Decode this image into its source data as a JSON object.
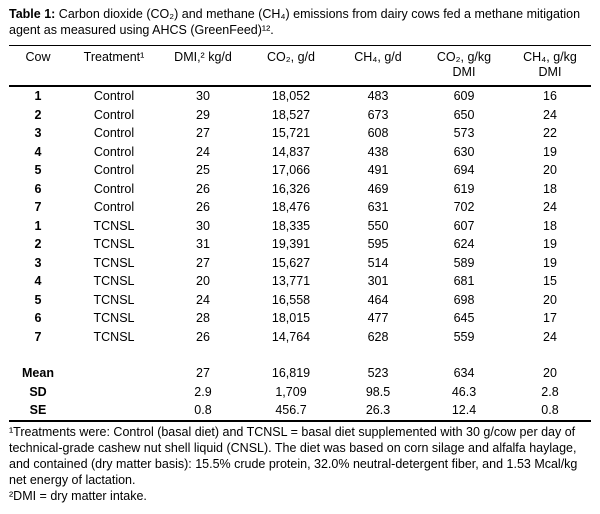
{
  "caption": {
    "label": "Table 1:",
    "text": "Carbon dioxide (CO₂) and methane (CH₄) emissions from dairy cows fed a methane mitigation agent as measured using AHCS (GreenFeed)¹²."
  },
  "table": {
    "headers": [
      "Cow",
      "Treatment¹",
      "DMI,² kg/d",
      "CO₂, g/d",
      "CH₄, g/d",
      "CO₂, g/kg\nDMI",
      "CH₄, g/kg\nDMI"
    ],
    "rows": [
      {
        "cow": "1",
        "treatment": "Control",
        "dmi": "30",
        "co2": "18,052",
        "ch4": "483",
        "co2_per_dmi": "609",
        "ch4_per_dmi": "16"
      },
      {
        "cow": "2",
        "treatment": "Control",
        "dmi": "29",
        "co2": "18,527",
        "ch4": "673",
        "co2_per_dmi": "650",
        "ch4_per_dmi": "24"
      },
      {
        "cow": "3",
        "treatment": "Control",
        "dmi": "27",
        "co2": "15,721",
        "ch4": "608",
        "co2_per_dmi": "573",
        "ch4_per_dmi": "22"
      },
      {
        "cow": "4",
        "treatment": "Control",
        "dmi": "24",
        "co2": "14,837",
        "ch4": "438",
        "co2_per_dmi": "630",
        "ch4_per_dmi": "19"
      },
      {
        "cow": "5",
        "treatment": "Control",
        "dmi": "25",
        "co2": "17,066",
        "ch4": "491",
        "co2_per_dmi": "694",
        "ch4_per_dmi": "20"
      },
      {
        "cow": "6",
        "treatment": "Control",
        "dmi": "26",
        "co2": "16,326",
        "ch4": "469",
        "co2_per_dmi": "619",
        "ch4_per_dmi": "18"
      },
      {
        "cow": "7",
        "treatment": "Control",
        "dmi": "26",
        "co2": "18,476",
        "ch4": "631",
        "co2_per_dmi": "702",
        "ch4_per_dmi": "24"
      },
      {
        "cow": "1",
        "treatment": "TCNSL",
        "dmi": "30",
        "co2": "18,335",
        "ch4": "550",
        "co2_per_dmi": "607",
        "ch4_per_dmi": "18"
      },
      {
        "cow": "2",
        "treatment": "TCNSL",
        "dmi": "31",
        "co2": "19,391",
        "ch4": "595",
        "co2_per_dmi": "624",
        "ch4_per_dmi": "19"
      },
      {
        "cow": "3",
        "treatment": "TCNSL",
        "dmi": "27",
        "co2": "15,627",
        "ch4": "514",
        "co2_per_dmi": "589",
        "ch4_per_dmi": "19"
      },
      {
        "cow": "4",
        "treatment": "TCNSL",
        "dmi": "20",
        "co2": "13,771",
        "ch4": "301",
        "co2_per_dmi": "681",
        "ch4_per_dmi": "15"
      },
      {
        "cow": "5",
        "treatment": "TCNSL",
        "dmi": "24",
        "co2": "16,558",
        "ch4": "464",
        "co2_per_dmi": "698",
        "ch4_per_dmi": "20"
      },
      {
        "cow": "6",
        "treatment": "TCNSL",
        "dmi": "28",
        "co2": "18,015",
        "ch4": "477",
        "co2_per_dmi": "645",
        "ch4_per_dmi": "17"
      },
      {
        "cow": "7",
        "treatment": "TCNSL",
        "dmi": "26",
        "co2": "14,764",
        "ch4": "628",
        "co2_per_dmi": "559",
        "ch4_per_dmi": "24"
      }
    ],
    "summary": [
      {
        "cow": "Mean",
        "treatment": "",
        "dmi": "27",
        "co2": "16,819",
        "ch4": "523",
        "co2_per_dmi": "634",
        "ch4_per_dmi": "20"
      },
      {
        "cow": "SD",
        "treatment": "",
        "dmi": "2.9",
        "co2": "1,709",
        "ch4": "98.5",
        "co2_per_dmi": "46.3",
        "ch4_per_dmi": "2.8"
      },
      {
        "cow": "SE",
        "treatment": "",
        "dmi": "0.8",
        "co2": "456.7",
        "ch4": "26.3",
        "co2_per_dmi": "12.4",
        "ch4_per_dmi": "0.8"
      }
    ]
  },
  "footnotes": [
    "¹Treatments were: Control (basal diet) and TCNSL = basal diet supplemented with 30 g/cow per day of technical-grade cashew nut shell liquid (CNSL). The diet was based on corn silage and alfalfa haylage, and contained (dry matter basis): 15.5% crude protein, 32.0% neutral-detergent fiber, and 1.53 Mcal/kg net energy of lactation.",
    "²DMI = dry matter intake."
  ]
}
